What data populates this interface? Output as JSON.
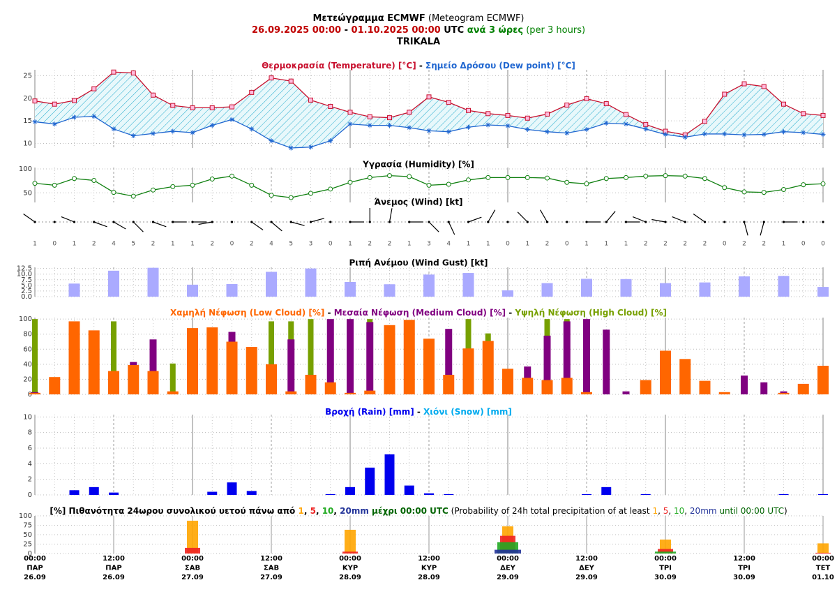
{
  "header": {
    "title_parts": [
      {
        "text": "Μετεώγραμμα ECMWF",
        "color": "#000000",
        "bold": true
      },
      {
        "text": " (Meteogram ECMWF)",
        "color": "#000000",
        "bold": false
      }
    ],
    "subtitle_parts": [
      {
        "text": "26.09.2025 00:00",
        "color": "#c00000",
        "bold": true
      },
      {
        "text": " - ",
        "color": "#000000",
        "bold": true
      },
      {
        "text": "01.10.2025 00:00",
        "color": "#c00000",
        "bold": true
      },
      {
        "text": " UTC",
        "color": "#000000",
        "bold": true
      },
      {
        "text": " ανά 3 ώρες",
        "color": "#008000",
        "bold": true
      },
      {
        "text": " (per 3 hours)",
        "color": "#008000",
        "bold": false
      }
    ],
    "location": "TRIKALA"
  },
  "x": [
    "2025-09-26T00:00",
    "2025-09-26T03:00",
    "2025-09-26T06:00",
    "2025-09-26T09:00",
    "2025-09-26T12:00",
    "2025-09-26T15:00",
    "2025-09-26T18:00",
    "2025-09-26T21:00",
    "2025-09-27T00:00",
    "2025-09-27T03:00",
    "2025-09-27T06:00",
    "2025-09-27T09:00",
    "2025-09-27T12:00",
    "2025-09-27T15:00",
    "2025-09-27T18:00",
    "2025-09-27T21:00",
    "2025-09-28T00:00",
    "2025-09-28T03:00",
    "2025-09-28T06:00",
    "2025-09-28T09:00",
    "2025-09-28T12:00",
    "2025-09-28T15:00",
    "2025-09-28T18:00",
    "2025-09-28T21:00",
    "2025-09-29T00:00",
    "2025-09-29T03:00",
    "2025-09-29T06:00",
    "2025-09-29T09:00",
    "2025-09-29T12:00",
    "2025-09-29T15:00",
    "2025-09-29T18:00",
    "2025-09-29T21:00",
    "2025-09-30T00:00",
    "2025-09-30T03:00",
    "2025-09-30T06:00",
    "2025-09-30T09:00",
    "2025-09-30T12:00",
    "2025-09-30T15:00",
    "2025-09-30T18:00",
    "2025-09-30T21:00",
    "2025-10-01T00:00"
  ],
  "xticks": [
    {
      "value": "2025-09-26T00:00",
      "label": [
        "00:00",
        "ΠΑΡ",
        "26.09"
      ]
    },
    {
      "value": "2025-09-26T12:00",
      "label": [
        "12:00",
        "ΠΑΡ",
        "26.09"
      ]
    },
    {
      "value": "2025-09-27T00:00",
      "label": [
        "00:00",
        "ΣΑΒ",
        "27.09"
      ]
    },
    {
      "value": "2025-09-27T12:00",
      "label": [
        "12:00",
        "ΣΑΒ",
        "27.09"
      ]
    },
    {
      "value": "2025-09-28T00:00",
      "label": [
        "00:00",
        "ΚΥΡ",
        "28.09"
      ]
    },
    {
      "value": "2025-09-28T12:00",
      "label": [
        "12:00",
        "ΚΥΡ",
        "28.09"
      ]
    },
    {
      "value": "2025-09-29T00:00",
      "label": [
        "00:00",
        "ΔΕΥ",
        "29.09"
      ]
    },
    {
      "value": "2025-09-29T12:00",
      "label": [
        "12:00",
        "ΔΕΥ",
        "29.09"
      ]
    },
    {
      "value": "2025-09-30T00:00",
      "label": [
        "00:00",
        "ΤΡΙ",
        "30.09"
      ]
    },
    {
      "value": "2025-09-30T12:00",
      "label": [
        "12:00",
        "ΤΡΙ",
        "30.09"
      ]
    },
    {
      "value": "2025-10-01T00:00",
      "label": [
        "00:00",
        "ΤΕΤ",
        "01.10"
      ]
    }
  ],
  "chart_data": [
    {
      "type": "line",
      "fill_between": true,
      "separator": " - ",
      "ylim": [
        9,
        26.3
      ],
      "yticks": [
        10,
        15,
        20,
        25
      ],
      "grid": true,
      "series": [
        {
          "name": "Θερμοκρασία (Temperature) [°C]",
          "color": "#c8102e",
          "marker": "square",
          "values": [
            19.4,
            18.7,
            19.5,
            22.1,
            25.8,
            25.6,
            20.7,
            18.4,
            17.9,
            17.9,
            18.1,
            21.3,
            24.5,
            23.8,
            19.6,
            18.2,
            16.9,
            15.9,
            15.7,
            16.9,
            20.3,
            19.1,
            17.3,
            16.6,
            16.2,
            15.6,
            16.5,
            18.5,
            19.9,
            18.8,
            16.4,
            14.2,
            12.7,
            11.9,
            14.9,
            20.9,
            23.2,
            22.6,
            18.7,
            16.6,
            16.2
          ]
        },
        {
          "name": "Σημείο Δρόσου (Dew point) [°C]",
          "color": "#1f66d0",
          "marker": "star",
          "values": [
            14.8,
            14.3,
            15.8,
            16.0,
            13.2,
            11.7,
            12.2,
            12.7,
            12.4,
            14.0,
            15.3,
            13.2,
            10.6,
            9.0,
            9.2,
            10.6,
            14.3,
            14.0,
            14.0,
            13.5,
            12.8,
            12.6,
            13.6,
            14.1,
            13.9,
            13.1,
            12.6,
            12.3,
            13.1,
            14.5,
            14.3,
            13.2,
            12.0,
            11.4,
            12.1,
            12.1,
            11.9,
            12.0,
            12.6,
            12.4,
            12.0
          ]
        }
      ]
    },
    {
      "type": "line",
      "title": "Υγρασία (Humidity) [%]",
      "title_color": "#008000",
      "ylim": [
        30,
        103
      ],
      "yticks": [
        50,
        100
      ],
      "grid": true,
      "series": [
        {
          "color": "#108010",
          "marker": "circle",
          "values": [
            70,
            66,
            80,
            76,
            51,
            43,
            56,
            63,
            66,
            79,
            85,
            66,
            45,
            40,
            49,
            58,
            72,
            82,
            86,
            84,
            66,
            68,
            77,
            82,
            82,
            82,
            81,
            72,
            69,
            80,
            82,
            85,
            86,
            85,
            80,
            61,
            52,
            51,
            57,
            67,
            69
          ]
        }
      ]
    },
    {
      "type": "wind",
      "title": "Άνεμος (Wind) [kt]",
      "title_color": "#000000",
      "speed": [
        1,
        0,
        1,
        2,
        4,
        5,
        2,
        1,
        1,
        2,
        0,
        2,
        4,
        5,
        3,
        0,
        1,
        2,
        2,
        1,
        3,
        4,
        1,
        1,
        0,
        1,
        2,
        0,
        1,
        1,
        1,
        2,
        2,
        2,
        2,
        0,
        2,
        2,
        1,
        0,
        0
      ],
      "direction": [
        305,
        0,
        292,
        110,
        120,
        135,
        110,
        90,
        90,
        260,
        0,
        125,
        130,
        105,
        75,
        0,
        90,
        0,
        10,
        90,
        135,
        155,
        70,
        30,
        0,
        315,
        330,
        0,
        90,
        40,
        90,
        292,
        280,
        292,
        305,
        0,
        165,
        195,
        90,
        0,
        0
      ]
    },
    {
      "type": "bar",
      "title": "Ριπή Ανέμου (Wind Gust) [kt]",
      "title_color": "#555588",
      "ylim": [
        0,
        13
      ],
      "yticks": [
        {
          "value": 0,
          "label": "0.0"
        },
        2.5,
        {
          "value": 5,
          "label": "5.0"
        },
        7.5,
        {
          "value": 10,
          "label": "10.0"
        },
        12.5
      ],
      "grid": true,
      "x": [
        "2025-09-26T06:00",
        "2025-09-26T12:00",
        "2025-09-26T18:00",
        "2025-09-27T00:00",
        "2025-09-27T06:00",
        "2025-09-27T12:00",
        "2025-09-27T18:00",
        "2025-09-28T00:00",
        "2025-09-28T06:00",
        "2025-09-28T12:00",
        "2025-09-28T18:00",
        "2025-09-29T00:00",
        "2025-09-29T06:00",
        "2025-09-29T12:00",
        "2025-09-29T18:00",
        "2025-09-30T00:00",
        "2025-09-30T06:00",
        "2025-09-30T12:00",
        "2025-09-30T18:00",
        "2025-10-01T00:00"
      ],
      "series": [
        {
          "color": "#aaaaff",
          "values": [
            5.8,
            11.5,
            12.8,
            5.3,
            5.6,
            11.0,
            12.5,
            6.5,
            5.5,
            9.8,
            10.5,
            2.8,
            6.0,
            7.9,
            7.8,
            6.0,
            6.3,
            9.0,
            9.2,
            4.3
          ]
        }
      ]
    },
    {
      "type": "bar",
      "separator": " - ",
      "ylim": [
        0,
        102
      ],
      "yticks": [
        0,
        20,
        40,
        60,
        80,
        100
      ],
      "grid": true,
      "series": [
        {
          "name": "Χαμηλή Νέφωση (Low Cloud) [%]",
          "color": "#ff6600",
          "values": [
            2,
            23,
            97,
            85,
            31,
            39,
            31,
            4,
            88,
            89,
            70,
            63,
            40,
            4,
            26,
            16,
            2,
            5,
            92,
            99,
            74,
            26,
            61,
            71,
            34,
            22,
            19,
            22,
            3,
            0,
            0,
            19,
            58,
            47,
            18,
            3,
            0,
            0,
            2,
            14,
            38
          ]
        },
        {
          "name": "Μεσαία Νέφωση (Medium Cloud) [%]",
          "color": "#800080",
          "values": [
            3,
            0,
            0,
            0,
            0,
            43,
            73,
            0,
            0,
            0,
            83,
            0,
            0,
            73,
            0,
            100,
            100,
            96,
            0,
            0,
            0,
            87,
            0,
            0,
            0,
            37,
            78,
            97,
            100,
            86,
            4,
            0,
            0,
            0,
            0,
            0,
            25,
            16,
            4,
            0,
            0
          ]
        },
        {
          "name": "Υψηλή Νέφωση (High Cloud) [%]",
          "color": "#77a000",
          "values": [
            100,
            0,
            0,
            0,
            97,
            0,
            0,
            41,
            0,
            0,
            0,
            0,
            97,
            97,
            100,
            0,
            0,
            100,
            0,
            0,
            0,
            0,
            100,
            81,
            0,
            0,
            100,
            100,
            0,
            0,
            0,
            0,
            0,
            0,
            0,
            0,
            0,
            0,
            0,
            0,
            0
          ]
        }
      ]
    },
    {
      "type": "bar",
      "separator": " - ",
      "ylim": [
        0,
        10.3
      ],
      "yticks": [
        0,
        2,
        4,
        6,
        8,
        10
      ],
      "grid": true,
      "series": [
        {
          "name": "Βροχή (Rain) [mm]",
          "color": "#0000ee",
          "values": [
            0,
            0,
            0.6,
            1.0,
            0.3,
            0,
            0,
            0,
            0,
            0.4,
            1.6,
            0.5,
            0,
            0,
            0,
            0.1,
            1.0,
            3.5,
            5.2,
            1.2,
            0.2,
            0.1,
            0,
            0,
            0,
            0,
            0,
            0,
            0.1,
            1.0,
            0,
            0.1,
            0,
            0,
            0,
            0,
            0,
            0,
            0.1,
            0,
            0.1
          ]
        },
        {
          "name": "Χιόνι (Snow) [mm]",
          "color": "#00aaee",
          "values": [
            0,
            0,
            0,
            0,
            0,
            0,
            0,
            0,
            0,
            0,
            0,
            0,
            0,
            0,
            0,
            0,
            0,
            0,
            0,
            0,
            0,
            0,
            0,
            0,
            0,
            0,
            0,
            0,
            0,
            0,
            0,
            0,
            0,
            0,
            0,
            0,
            0,
            0,
            0,
            0,
            0
          ]
        }
      ]
    },
    {
      "type": "bar",
      "ylim": [
        0,
        100
      ],
      "yticks": [
        0,
        25,
        50,
        75,
        100
      ],
      "grid": true,
      "title_parts": [
        {
          "text": "[%] Πιθανότητα 24ωρου συνολικού υετού πάνω από ",
          "color": "#000000",
          "bold": true
        },
        {
          "text": "1",
          "color": "#ffa500",
          "bold": true
        },
        {
          "text": ", ",
          "color": "#000000",
          "bold": true
        },
        {
          "text": "5",
          "color": "#ee2222",
          "bold": true
        },
        {
          "text": ", ",
          "color": "#000000",
          "bold": true
        },
        {
          "text": "10",
          "color": "#22aa22",
          "bold": true
        },
        {
          "text": ", ",
          "color": "#000000",
          "bold": true
        },
        {
          "text": "20mm",
          "color": "#223399",
          "bold": true
        },
        {
          "text": " μέχρι 00:00 UTC",
          "color": "#006400",
          "bold": true
        },
        {
          "text": " (Probability of 24h total precipitation of at least ",
          "color": "#000000",
          "bold": false
        },
        {
          "text": "1",
          "color": "#ffa500",
          "bold": false
        },
        {
          "text": ", ",
          "color": "#000000",
          "bold": false
        },
        {
          "text": "5",
          "color": "#ee2222",
          "bold": false
        },
        {
          "text": ", ",
          "color": "#000000",
          "bold": false
        },
        {
          "text": "10",
          "color": "#22aa22",
          "bold": false
        },
        {
          "text": ", ",
          "color": "#000000",
          "bold": false
        },
        {
          "text": "20mm",
          "color": "#223399",
          "bold": false
        },
        {
          "text": " until 00:00 UTC",
          "color": "#006400",
          "bold": false
        },
        {
          "text": ")",
          "color": "#000000",
          "bold": false
        }
      ],
      "x": [
        "2025-09-27T00:00",
        "2025-09-28T00:00",
        "2025-09-29T00:00",
        "2025-09-30T00:00",
        "2025-10-01T00:00"
      ],
      "series": [
        {
          "color": "#ffa500",
          "values": [
            87,
            63,
            72,
            37,
            27
          ]
        },
        {
          "color": "#ee2222",
          "values": [
            15,
            5,
            47,
            12,
            2
          ]
        },
        {
          "color": "#22aa22",
          "values": [
            0,
            0,
            30,
            5,
            0
          ]
        },
        {
          "color": "#223399",
          "values": [
            0,
            0,
            10,
            0,
            0
          ]
        }
      ]
    }
  ]
}
